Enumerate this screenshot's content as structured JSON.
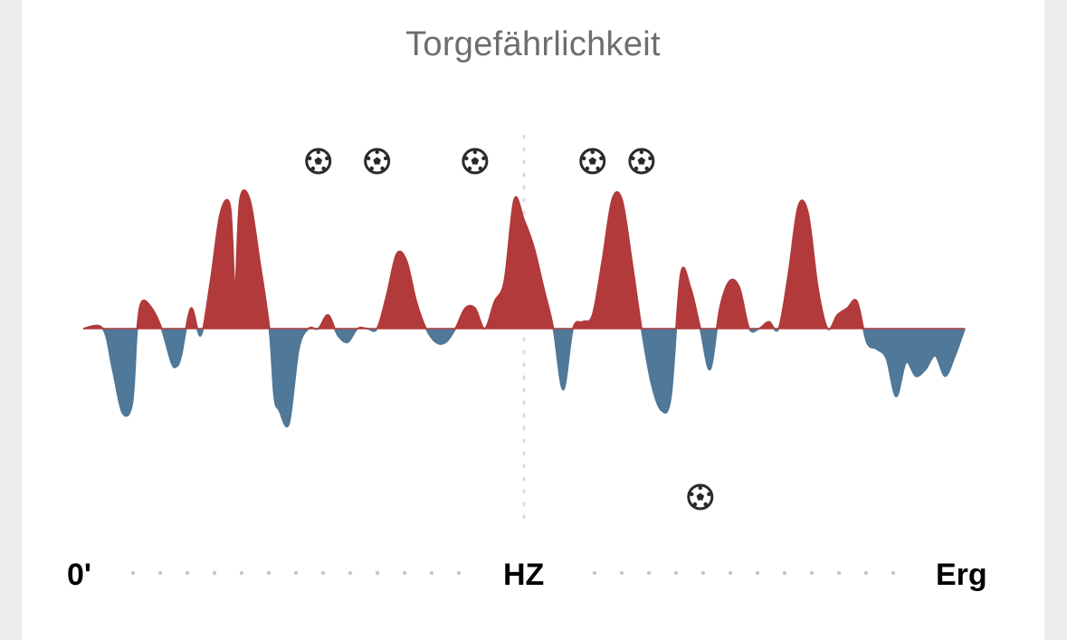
{
  "chart_data": {
    "type": "area",
    "title": "Torgefährlichkeit",
    "x_labels": {
      "start": "0'",
      "half": "HZ",
      "end": "Erg"
    },
    "xlim": [
      0,
      90
    ],
    "ylim": [
      -1,
      1
    ],
    "colors": {
      "home": "#b23a3a",
      "away": "#4f7899",
      "divider": "#dcdcdc",
      "dots": "#c8c8cc",
      "goal_icon": "#2a2a2a"
    },
    "home_goals": [
      24,
      30,
      40,
      52,
      57
    ],
    "away_goals": [
      63
    ],
    "x": [
      0,
      2,
      3,
      4,
      5,
      5.5,
      6,
      7,
      8,
      9,
      9.5,
      10,
      11,
      12,
      13,
      14,
      15,
      15.5,
      16,
      17,
      18,
      19,
      19.5,
      20,
      21,
      22,
      23,
      24,
      25,
      26,
      27,
      28,
      29,
      30,
      31,
      32,
      33,
      34,
      35,
      36,
      37,
      38,
      39,
      40,
      41,
      42,
      43,
      44,
      45,
      46,
      47,
      48,
      49,
      50,
      51,
      52,
      53,
      54,
      55,
      56,
      57,
      58,
      59,
      60,
      61,
      62,
      63,
      64,
      65,
      66,
      67,
      68,
      69,
      70,
      71,
      72,
      73,
      74,
      75,
      76,
      77,
      78,
      79,
      80,
      81,
      82,
      83,
      84,
      85,
      86,
      87,
      88,
      89,
      90
    ],
    "y": [
      0,
      0,
      -0.3,
      -0.62,
      -0.55,
      0,
      0.2,
      0.15,
      0,
      -0.25,
      -0.28,
      -0.2,
      0.15,
      -0.05,
      0.35,
      0.85,
      0.9,
      0.3,
      0.95,
      0.95,
      0.5,
      0,
      -0.5,
      -0.6,
      -0.7,
      -0.15,
      0,
      0,
      0.1,
      -0.05,
      -0.1,
      0,
      0,
      0,
      0.25,
      0.55,
      0.5,
      0.2,
      0,
      -0.1,
      -0.1,
      0,
      0.15,
      0.15,
      0,
      0.2,
      0.35,
      0.95,
      0.8,
      0.6,
      0.3,
      0,
      -0.45,
      0,
      0.05,
      0.1,
      0.5,
      0.95,
      0.95,
      0.5,
      0,
      -0.4,
      -0.6,
      -0.5,
      0.4,
      0.3,
      0,
      -0.3,
      0.15,
      0.35,
      0.3,
      0,
      0,
      0.05,
      0,
      0.4,
      0.9,
      0.85,
      0.3,
      0,
      0.1,
      0.15,
      0.2,
      -0.1,
      -0.15,
      -0.22,
      -0.5,
      -0.25,
      -0.35,
      -0.3,
      -0.2,
      -0.35,
      -0.2,
      0
    ]
  }
}
